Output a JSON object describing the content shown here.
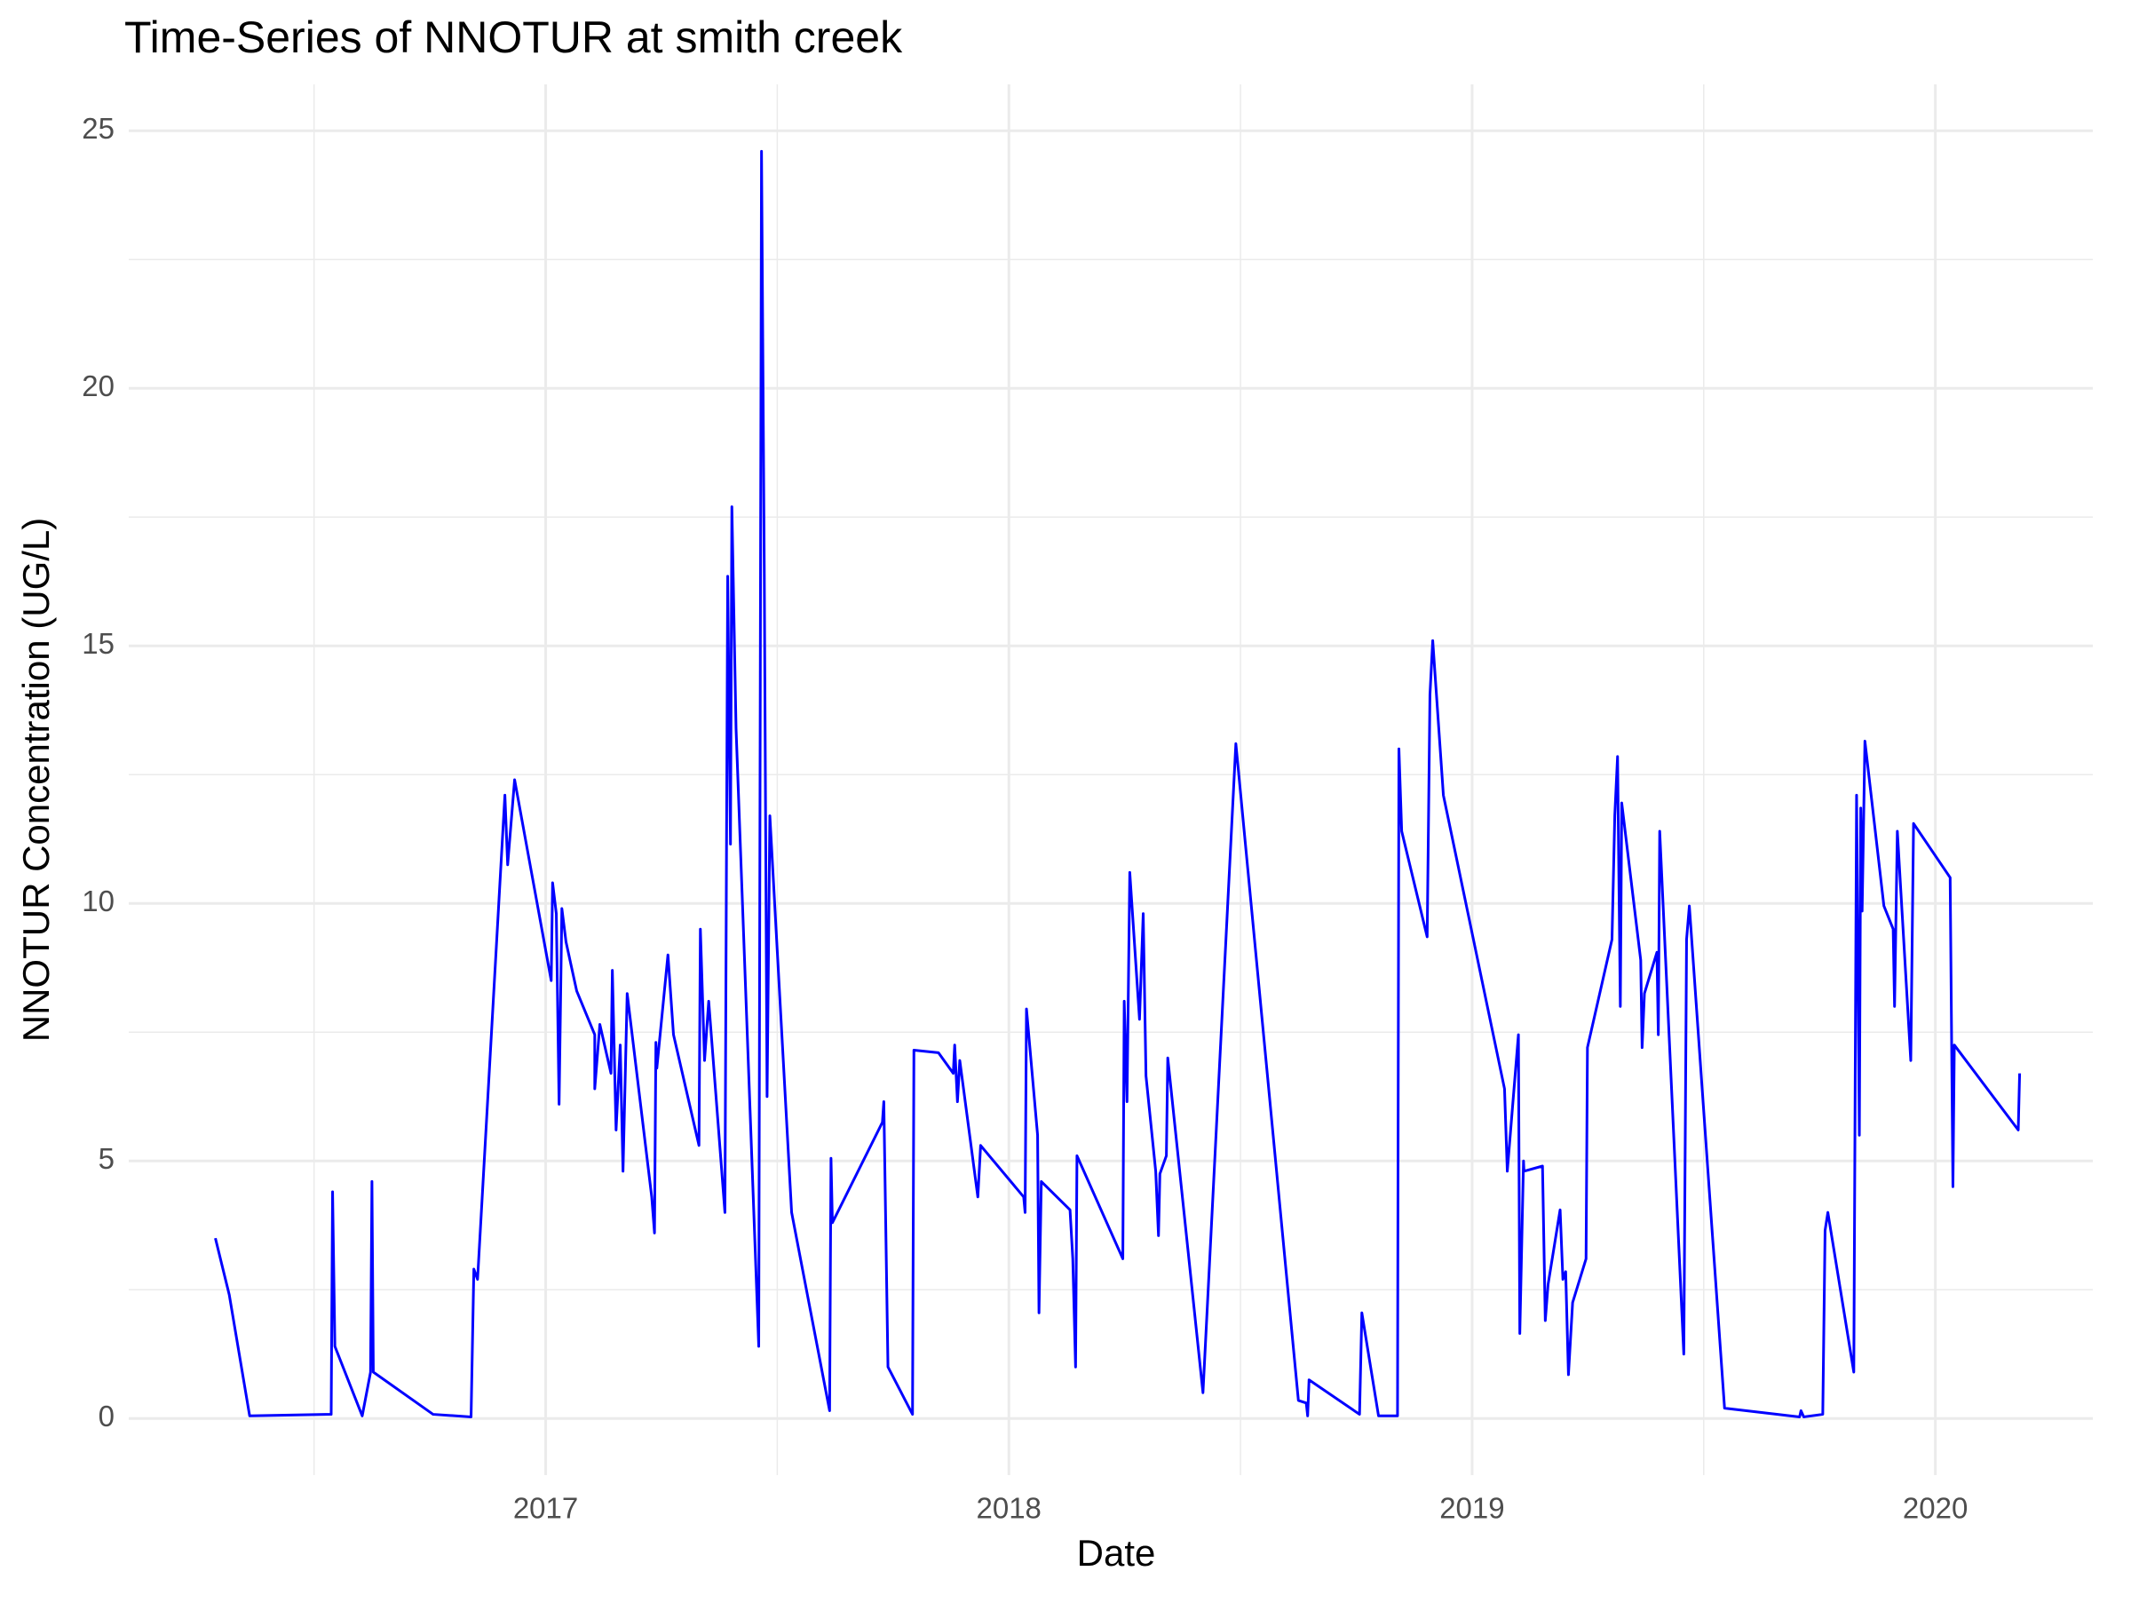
{
  "chart_data": {
    "type": "line",
    "title": "Time-Series of NNOTUR at smith creek",
    "x_label": "Date",
    "y_label": "NNOTUR Concentration (UG/L)",
    "color": "#0000ff",
    "grid": true,
    "xlim": [
      2016.1,
      2020.34
    ],
    "xticks": [
      2017,
      2018,
      2019,
      2020
    ],
    "ylim": [
      -1.1,
      25.9
    ],
    "yticks": [
      0,
      5,
      10,
      15,
      20,
      25
    ],
    "x": [
      2016.287,
      2016.317,
      2016.361,
      2016.537,
      2016.54,
      2016.545,
      2016.604,
      2016.622,
      2016.625,
      2016.628,
      2016.757,
      2016.839,
      2016.845,
      2016.853,
      2016.912,
      2016.918,
      2016.933,
      2017.012,
      2017.015,
      2017.023,
      2017.029,
      2017.035,
      2017.044,
      2017.067,
      2017.106,
      2017.106,
      2017.117,
      2017.141,
      2017.144,
      2017.152,
      2017.161,
      2017.167,
      2017.176,
      2017.229,
      2017.235,
      2017.238,
      2017.24,
      2017.264,
      2017.276,
      2017.331,
      2017.334,
      2017.343,
      2017.352,
      2017.387,
      2017.393,
      2017.399,
      2017.402,
      2017.411,
      2017.46,
      2017.466,
      2017.472,
      2017.478,
      2017.484,
      2017.531,
      2017.613,
      2017.616,
      2017.619,
      2017.727,
      2017.73,
      2017.739,
      2017.792,
      2017.795,
      2017.848,
      2017.88,
      2017.883,
      2017.889,
      2017.894,
      2017.933,
      2017.939,
      2018.032,
      2018.035,
      2018.038,
      2018.062,
      2018.065,
      2018.07,
      2018.132,
      2018.138,
      2018.144,
      2018.147,
      2018.246,
      2018.249,
      2018.255,
      2018.261,
      2018.282,
      2018.29,
      2018.296,
      2018.317,
      2018.323,
      2018.326,
      2018.34,
      2018.343,
      2018.419,
      2018.49,
      2018.625,
      2018.642,
      2018.645,
      2018.648,
      2018.757,
      2018.762,
      2018.798,
      2018.839,
      2018.842,
      2018.848,
      2018.903,
      2018.909,
      2018.915,
      2018.938,
      2019.07,
      2019.076,
      2019.1,
      2019.103,
      2019.111,
      2019.112,
      2019.152,
      2019.158,
      2019.164,
      2019.19,
      2019.196,
      2019.202,
      2019.208,
      2019.217,
      2019.246,
      2019.249,
      2019.302,
      2019.308,
      2019.314,
      2019.32,
      2019.323,
      2019.364,
      2019.367,
      2019.372,
      2019.399,
      2019.402,
      2019.405,
      2019.457,
      2019.463,
      2019.469,
      2019.545,
      2019.707,
      2019.71,
      2019.716,
      2019.757,
      2019.762,
      2019.768,
      2019.824,
      2019.83,
      2019.836,
      2019.839,
      2019.842,
      2019.848,
      2019.889,
      2019.909,
      2019.912,
      2019.918,
      2019.947,
      2019.953,
      2020.032,
      2020.038,
      2020.041,
      2020.179,
      2020.182
    ],
    "values": [
      3.5,
      2.4,
      0.05,
      0.08,
      4.4,
      1.4,
      0.05,
      0.9,
      4.6,
      0.9,
      0.08,
      0.03,
      2.9,
      2.7,
      12.1,
      10.75,
      12.4,
      8.5,
      10.4,
      9.8,
      6.1,
      9.9,
      9.25,
      8.3,
      7.45,
      6.4,
      7.65,
      6.7,
      8.7,
      5.6,
      7.25,
      4.8,
      8.25,
      4.3,
      3.6,
      7.3,
      6.8,
      9.0,
      7.45,
      5.3,
      9.5,
      6.95,
      8.1,
      4.0,
      16.35,
      11.15,
      17.7,
      13.4,
      1.4,
      24.6,
      16.4,
      6.25,
      11.7,
      4.0,
      0.15,
      5.05,
      3.8,
      5.75,
      6.15,
      1.0,
      0.08,
      7.15,
      7.1,
      6.7,
      7.25,
      6.15,
      6.95,
      4.3,
      5.3,
      4.3,
      4.0,
      7.95,
      5.5,
      2.05,
      4.6,
      4.05,
      3.1,
      1.0,
      5.1,
      3.1,
      8.1,
      6.15,
      10.6,
      7.75,
      9.8,
      6.65,
      4.8,
      3.55,
      4.75,
      5.1,
      7.0,
      0.5,
      13.1,
      0.35,
      0.3,
      0.05,
      0.75,
      0.08,
      2.05,
      0.05,
      0.05,
      13.0,
      11.4,
      9.35,
      14.05,
      15.1,
      12.1,
      6.4,
      4.8,
      7.45,
      1.65,
      5.0,
      4.8,
      4.9,
      1.9,
      2.6,
      4.05,
      2.7,
      2.85,
      0.85,
      2.25,
      3.1,
      7.2,
      9.3,
      11.7,
      12.85,
      8.0,
      11.95,
      8.9,
      7.2,
      8.25,
      9.05,
      7.45,
      11.4,
      1.25,
      9.3,
      9.95,
      0.2,
      0.03,
      0.15,
      0.03,
      0.08,
      3.65,
      4.0,
      0.9,
      12.1,
      5.5,
      11.85,
      9.85,
      13.15,
      9.95,
      9.5,
      8.0,
      11.4,
      6.95,
      11.55,
      10.5,
      4.5,
      7.25,
      5.6,
      6.7
    ]
  }
}
